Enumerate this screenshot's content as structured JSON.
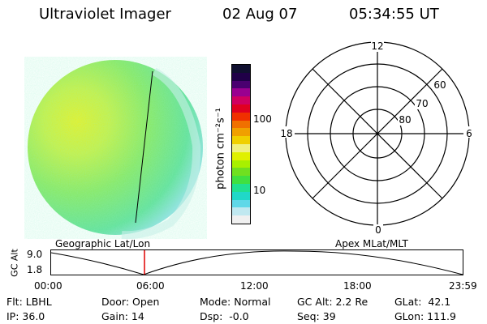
{
  "header": {
    "instrument": "Ultraviolet Imager",
    "date": "02 Aug 07",
    "time": "05:34:55 UT"
  },
  "colorbar": {
    "unit_label": "photon cm⁻²s⁻¹",
    "ticks": [
      "100",
      "10"
    ],
    "colors": [
      "#101030",
      "#200048",
      "#4a0070",
      "#9a0090",
      "#d00060",
      "#e00020",
      "#f03000",
      "#f07000",
      "#f0a000",
      "#f0d000",
      "#f0f080",
      "#e0f000",
      "#a8f000",
      "#70e020",
      "#40e040",
      "#20e090",
      "#20d8c8",
      "#60d8e8",
      "#c0e8f0",
      "#f0f0f0"
    ]
  },
  "polar": {
    "mlt_labels": [
      "12",
      "18",
      "6",
      "0"
    ],
    "lat_labels": [
      "60",
      "70",
      "80"
    ]
  },
  "timeline": {
    "geo_label": "Geographic Lat/Lon",
    "apex_label": "Apex MLat/MLT",
    "axis_title": "GC Alt",
    "y_max": "9.0",
    "y_min": "1.8",
    "x_ticks": [
      "00:00",
      "06:00",
      "12:00",
      "18:00",
      "23:59"
    ],
    "marker_color": "#e00000"
  },
  "info": {
    "row1": [
      "Flt: LBHL",
      "Door: Open",
      "Mode: Normal",
      "GC Alt: 2.2 Re",
      "GLat:  42.1"
    ],
    "row2": [
      "IP: 36.0",
      "Gain: 14",
      "Dsp:  -0.0",
      "Seq: 39",
      "GLon: 111.9"
    ]
  }
}
